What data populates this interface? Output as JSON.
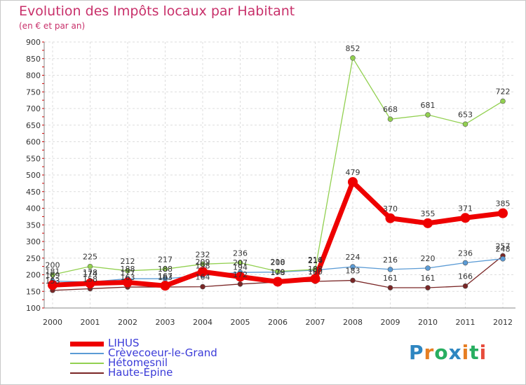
{
  "chart_data": {
    "type": "line",
    "title": "Evolution des Impôts locaux par Habitant",
    "subtitle": "(en € et par an)",
    "xlabel": "",
    "ylabel": "",
    "ylim": [
      100,
      900
    ],
    "yticks": [
      100,
      150,
      200,
      250,
      300,
      350,
      400,
      450,
      500,
      550,
      600,
      650,
      700,
      750,
      800,
      850,
      900
    ],
    "categories": [
      "2000",
      "2001",
      "2002",
      "2003",
      "2004",
      "2005",
      "2006",
      "2007",
      "2008",
      "2009",
      "2010",
      "2011",
      "2012"
    ],
    "series": [
      {
        "name": "LIHUS",
        "color": "#ee0000",
        "values": [
          169,
          174,
          177,
          167,
          209,
          194,
          179,
          188,
          479,
          370,
          355,
          371,
          385
        ]
      },
      {
        "name": "Crèvecoeur-le-Grand",
        "color": "#5b9bd5",
        "values": [
          181,
          178,
          188,
          188,
          198,
          207,
          208,
          214,
          224,
          216,
          220,
          236,
          248
        ]
      },
      {
        "name": "Hétomesnil",
        "color": "#92d050",
        "values": [
          200,
          225,
          212,
          217,
          232,
          236,
          210,
          216,
          852,
          668,
          681,
          653,
          722
        ]
      },
      {
        "name": "Haute-Épine",
        "color": "#7a2626",
        "values": [
          153,
          158,
          163,
          163,
          164,
          172,
          178,
          180,
          183,
          161,
          161,
          166,
          257
        ]
      }
    ]
  },
  "logo": {
    "text": "Proxiti",
    "colors": [
      "#2e86c1",
      "#e67e22",
      "#27ae60",
      "#2e86c1",
      "#e67e22",
      "#27ae60",
      "#e74c3c"
    ]
  }
}
